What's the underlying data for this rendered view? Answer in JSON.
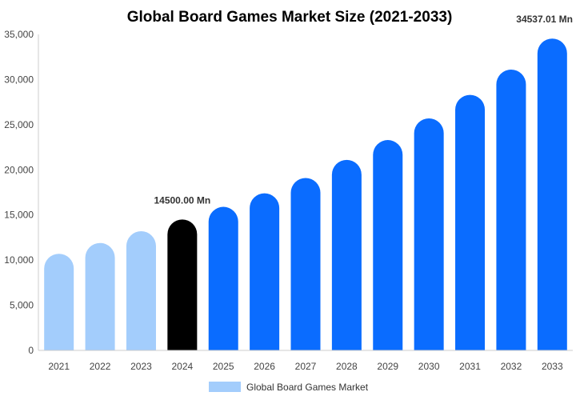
{
  "chart_data": {
    "type": "bar",
    "title": "Global Board Games Market Size (2021-2033)",
    "xlabel": "",
    "ylabel": "",
    "categories": [
      "2021",
      "2022",
      "2023",
      "2024",
      "2025",
      "2026",
      "2027",
      "2028",
      "2029",
      "2030",
      "2031",
      "2032",
      "2033"
    ],
    "series": [
      {
        "name": "Global Board Games Market",
        "values": [
          10700,
          11900,
          13200,
          14500,
          15900,
          17400,
          19100,
          21100,
          23300,
          25700,
          28300,
          31100,
          34537.01
        ]
      }
    ],
    "ylim": [
      0,
      35000
    ],
    "yticks": [
      0,
      5000,
      10000,
      15000,
      20000,
      25000,
      30000,
      35000
    ],
    "ytick_labels": [
      "0",
      "5,000",
      "10,000",
      "15,000",
      "20,000",
      "25,000",
      "30,000",
      "35,000"
    ],
    "grid": false,
    "legend": {
      "position": "bottom",
      "label": "Global Board Games Market"
    },
    "annotations": [
      {
        "category": "2024",
        "text": "14500.00 Mn"
      },
      {
        "category": "2033",
        "text": "34537.01 Mn"
      }
    ],
    "colors": {
      "historical": "#a3cdfc",
      "base_year": "#000000",
      "forecast": "#0a6cff",
      "axis": "#cccccc",
      "legend_swatch": "#a3cdfc"
    },
    "bar_colors": [
      "historical",
      "historical",
      "historical",
      "base_year",
      "forecast",
      "forecast",
      "forecast",
      "forecast",
      "forecast",
      "forecast",
      "forecast",
      "forecast",
      "forecast"
    ]
  }
}
